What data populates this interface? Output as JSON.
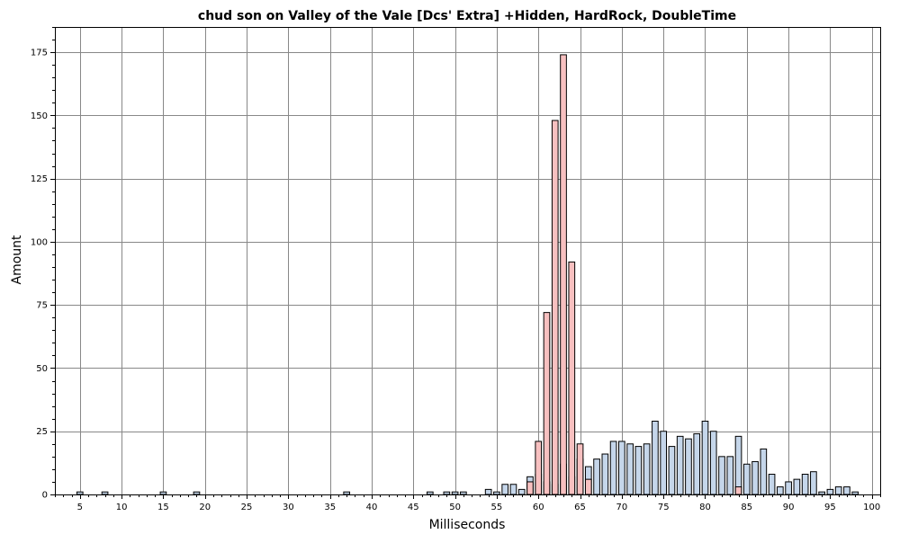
{
  "chart_data": {
    "type": "bar",
    "title": "chud son on Valley of the Vale [Dcs' Extra] +Hidden, HardRock, DoubleTime",
    "xlabel": "Milliseconds",
    "ylabel": "Amount",
    "xlim": [
      2,
      101
    ],
    "ylim": [
      0,
      185
    ],
    "x_ticks": [
      5,
      10,
      15,
      20,
      25,
      30,
      35,
      40,
      45,
      50,
      55,
      60,
      65,
      70,
      75,
      80,
      85,
      90,
      95,
      100
    ],
    "y_ticks": [
      0,
      25,
      50,
      75,
      100,
      125,
      150,
      175
    ],
    "grid": true,
    "series": [
      {
        "color": "#c5d6ea",
        "x": [
          5,
          8,
          15,
          19,
          37,
          47,
          49,
          50,
          51,
          54,
          55,
          56,
          57,
          58,
          59,
          60,
          61,
          62,
          63,
          64,
          65,
          66,
          67,
          68,
          69,
          70,
          71,
          72,
          73,
          74,
          75,
          76,
          77,
          78,
          79,
          80,
          81,
          82,
          83,
          84,
          85,
          86,
          87,
          88,
          89,
          90,
          91,
          92,
          93,
          94,
          95,
          96,
          97,
          98
        ],
        "values": [
          1,
          1,
          1,
          1,
          1,
          1,
          1,
          1,
          1,
          2,
          1,
          4,
          4,
          2,
          7,
          8,
          5,
          4,
          12,
          7,
          14,
          11,
          14,
          16,
          21,
          21,
          20,
          19,
          20,
          29,
          25,
          19,
          23,
          22,
          24,
          29,
          25,
          15,
          15,
          23,
          12,
          13,
          18,
          8,
          3,
          5,
          6,
          8,
          9,
          1,
          2,
          3,
          3,
          1
        ]
      },
      {
        "color": "#f7c0c0",
        "x": [
          59,
          60,
          61,
          62,
          63,
          64,
          65,
          66,
          84
        ],
        "values": [
          5,
          21,
          72,
          148,
          174,
          92,
          20,
          6,
          3
        ]
      }
    ]
  }
}
